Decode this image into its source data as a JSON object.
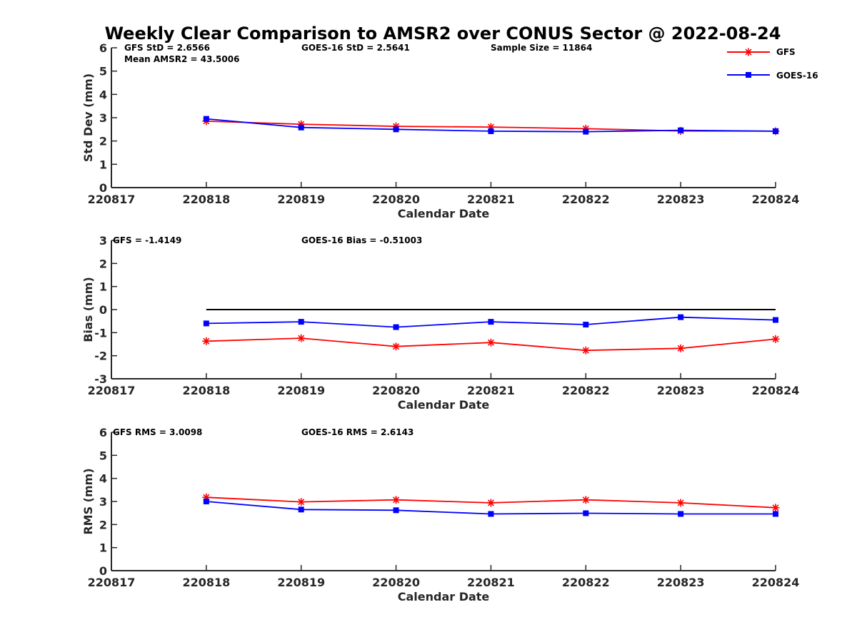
{
  "title": "Weekly Clear Comparison to AMSR2 over CONUS Sector @ 2022-08-24",
  "colors": {
    "gfs": "#ff0000",
    "goes16": "#0000ff",
    "zero_line": "#000000",
    "axis": "#262626"
  },
  "legend": {
    "placement": "top-right",
    "entries": [
      {
        "label": "GFS",
        "color": "#ff0000",
        "marker": "asterisk"
      },
      {
        "label": "GOES-16",
        "color": "#0000ff",
        "marker": "square"
      }
    ]
  },
  "chart_data": [
    {
      "type": "line",
      "panel": "std",
      "xlabel": "Calendar Date",
      "ylabel": "Std Dev (mm)",
      "xlim": [
        220817,
        220824
      ],
      "ylim": [
        0,
        6
      ],
      "x_ticks": [
        "220817",
        "220818",
        "220819",
        "220820",
        "220821",
        "220822",
        "220823",
        "220824"
      ],
      "y_ticks": [
        "0",
        "1",
        "2",
        "3",
        "4",
        "5",
        "6"
      ],
      "x": [
        220818,
        220819,
        220820,
        220821,
        220822,
        220823,
        220824
      ],
      "series": [
        {
          "name": "GFS",
          "color": "#ff0000",
          "marker": "asterisk",
          "values": [
            2.85,
            2.72,
            2.63,
            2.6,
            2.53,
            2.43,
            2.42
          ]
        },
        {
          "name": "GOES-16",
          "color": "#0000ff",
          "marker": "square",
          "values": [
            2.95,
            2.58,
            2.5,
            2.42,
            2.4,
            2.46,
            2.42
          ]
        }
      ],
      "annotations": [
        {
          "text": "GFS StD = 2.6566",
          "row": 1,
          "col": "left"
        },
        {
          "text": "Mean AMSR2 = 43.5006",
          "row": 2,
          "col": "left"
        },
        {
          "text": "GOES-16 StD = 2.5641",
          "row": 1,
          "col": "middle"
        },
        {
          "text": "Sample Size = 11864",
          "row": 1,
          "col": "right"
        }
      ]
    },
    {
      "type": "line",
      "panel": "bias",
      "xlabel": "Calendar Date",
      "ylabel": "Bias (mm)",
      "xlim": [
        220817,
        220824
      ],
      "ylim": [
        -3,
        3
      ],
      "x_ticks": [
        "220817",
        "220818",
        "220819",
        "220820",
        "220821",
        "220822",
        "220823",
        "220824"
      ],
      "y_ticks": [
        "-3",
        "-2",
        "-1",
        "0",
        "1",
        "2",
        "3"
      ],
      "x": [
        220818,
        220819,
        220820,
        220821,
        220822,
        220823,
        220824
      ],
      "zero_line": true,
      "series": [
        {
          "name": "GFS",
          "color": "#ff0000",
          "marker": "asterisk",
          "values": [
            -1.37,
            -1.24,
            -1.6,
            -1.43,
            -1.77,
            -1.68,
            -1.28
          ]
        },
        {
          "name": "GOES-16",
          "color": "#0000ff",
          "marker": "square",
          "values": [
            -0.6,
            -0.53,
            -0.76,
            -0.53,
            -0.65,
            -0.33,
            -0.45
          ]
        }
      ],
      "annotations": [
        {
          "text": "GFS = -1.4149",
          "row": 1,
          "col": "left-edge"
        },
        {
          "text": "GOES-16 Bias  = -0.51003",
          "row": 1,
          "col": "middle"
        }
      ]
    },
    {
      "type": "line",
      "panel": "rms",
      "xlabel": "Calendar Date",
      "ylabel": "RMS (mm)",
      "xlim": [
        220817,
        220824
      ],
      "ylim": [
        0,
        6
      ],
      "x_ticks": [
        "220817",
        "220818",
        "220819",
        "220820",
        "220821",
        "220822",
        "220823",
        "220824"
      ],
      "y_ticks": [
        "0",
        "1",
        "2",
        "3",
        "4",
        "5",
        "6"
      ],
      "x": [
        220818,
        220819,
        220820,
        220821,
        220822,
        220823,
        220824
      ],
      "series": [
        {
          "name": "GFS",
          "color": "#ff0000",
          "marker": "asterisk",
          "values": [
            3.18,
            2.98,
            3.07,
            2.94,
            3.07,
            2.94,
            2.73
          ]
        },
        {
          "name": "GOES-16",
          "color": "#0000ff",
          "marker": "square",
          "values": [
            3.0,
            2.65,
            2.62,
            2.46,
            2.49,
            2.46,
            2.46
          ]
        }
      ],
      "annotations": [
        {
          "text": "GFS RMS = 3.0098",
          "row": 1,
          "col": "left-edge"
        },
        {
          "text": "GOES-16 RMS = 2.6143",
          "row": 1,
          "col": "middle"
        }
      ]
    }
  ]
}
